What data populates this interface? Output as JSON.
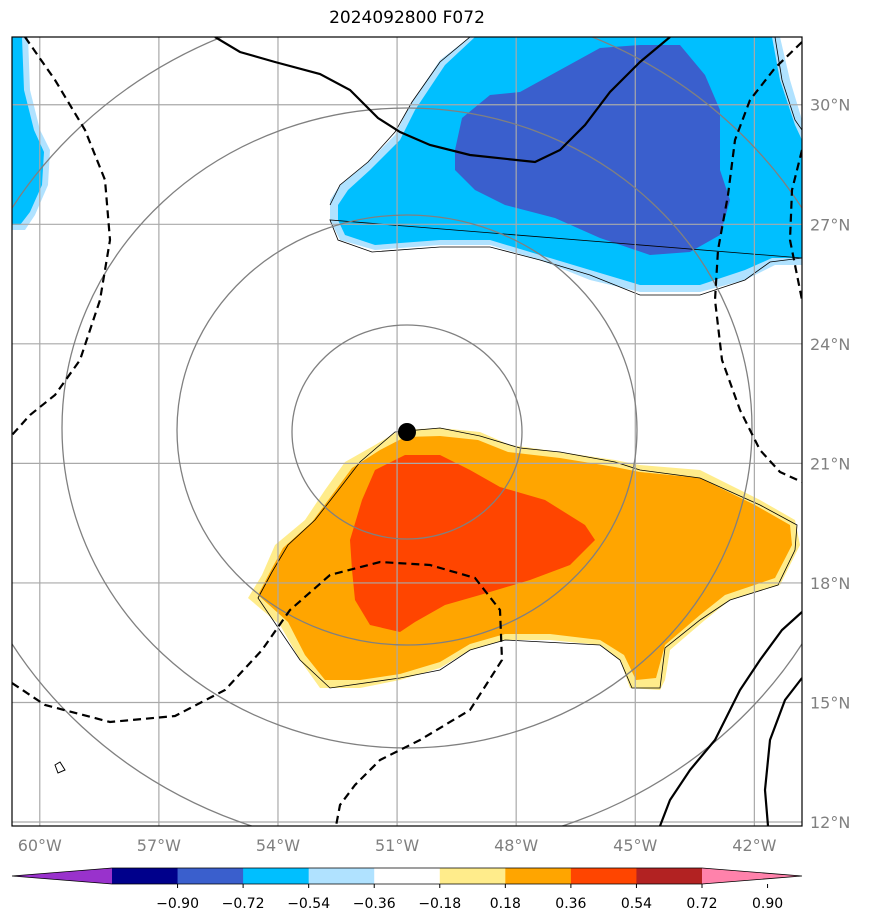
{
  "title": "2024092800 F072",
  "map": {
    "lon_labels": [
      "60°W",
      "57°W",
      "54°W",
      "51°W",
      "48°W",
      "45°W",
      "42°W"
    ],
    "lon_values": [
      -60,
      -57,
      -54,
      -51,
      -48,
      -45,
      -42
    ],
    "lat_labels": [
      "30°N",
      "27°N",
      "24°N",
      "21°N",
      "18°N",
      "15°N",
      "12°N"
    ],
    "lat_values": [
      30,
      27,
      24,
      21,
      18,
      15,
      12
    ],
    "lon_range": [
      -60.7,
      -40.8
    ],
    "lat_range": [
      11.9,
      31.7
    ],
    "center_marker": {
      "lon": -50.8,
      "lat": 21.7
    },
    "gridlines": true
  },
  "colorbar": {
    "tick_labels": [
      "−0.90",
      "−0.72",
      "−0.54",
      "−0.36",
      "−0.18",
      "0.18",
      "0.36",
      "0.54",
      "0.72",
      "0.90"
    ],
    "colors": [
      "#9932cc",
      "#00008b",
      "#3a5fcd",
      "#00bfff",
      "#b0e2ff",
      "#ffffff",
      "#ffec8b",
      "#ffa500",
      "#ff4500",
      "#b22222",
      "#ff82ab"
    ]
  },
  "colors": {
    "grid": "#a9a9a9",
    "range_rings": "#808080",
    "positive_contour": "#000000",
    "negative_contour": "#000000"
  }
}
